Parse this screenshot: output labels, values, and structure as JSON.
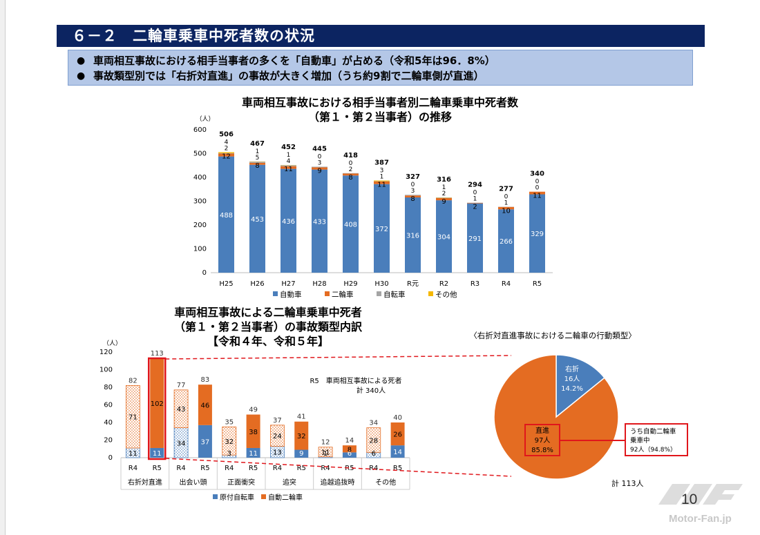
{
  "page": {
    "title": "６－２　二輪車乗車中死者数の状況",
    "bullets": [
      "事故類型別では「右折対直進」の事故が大きく増加（うち約9割で二輪車側が直進）"
    ],
    "bullet_mark": "●",
    "bullet_first": "車両相互事故における相手当事者の多くを「自動車」が占める（令和5年は96．8%）",
    "page_number": "10",
    "logo_text": "Motor-Fan.jp"
  },
  "colors": {
    "auto": "#4a7ebb",
    "moto": "#e46c22",
    "bike": "#a5a5a5",
    "other": "#f5b800",
    "title_bg": "#0c2461",
    "summary_bg": "#b4c7e7",
    "highlight": "#e0161b"
  },
  "chart_data": [
    {
      "type": "bar",
      "stacked": true,
      "title_line1": "車両相互事故における相手当事者別二輪車乗車中死者数",
      "title_line2": "（第１・第２当事者）の推移",
      "unit": "（人）",
      "ylim": [
        0,
        600
      ],
      "yticks": [
        0,
        100,
        200,
        300,
        400,
        500,
        600
      ],
      "categories": [
        "H25",
        "H26",
        "H27",
        "H28",
        "H29",
        "H30",
        "R元",
        "R2",
        "R3",
        "R4",
        "R5"
      ],
      "totals": [
        506,
        467,
        452,
        445,
        418,
        387,
        327,
        316,
        294,
        277,
        340
      ],
      "series": [
        {
          "name": "自動車",
          "values": [
            488,
            453,
            436,
            433,
            408,
            372,
            316,
            304,
            291,
            266,
            329
          ]
        },
        {
          "name": "二輪車",
          "values": [
            12,
            8,
            11,
            9,
            8,
            11,
            8,
            9,
            2,
            10,
            11
          ]
        },
        {
          "name": "自転車",
          "values": [
            2,
            5,
            4,
            3,
            2,
            1,
            3,
            2,
            1,
            1,
            0
          ]
        },
        {
          "name": "その他",
          "values": [
            4,
            1,
            1,
            0,
            0,
            3,
            0,
            1,
            0,
            0,
            0
          ]
        }
      ]
    },
    {
      "type": "bar",
      "stacked": true,
      "title_line1": "車両相互事故による二輪車乗車中死者",
      "title_line2": "（第１・第２当事者）の事故類型内訳",
      "title_line3": "【令和４年、令和５年】",
      "unit": "（人）",
      "ylim": [
        0,
        120
      ],
      "yticks": [
        0,
        20,
        40,
        60,
        80,
        100,
        120
      ],
      "annotation_line1": "R5　車両相互事故による死者",
      "annotation_line2": "計 340人",
      "groups": [
        "右折対直進",
        "出会い頭",
        "正面衝突",
        "追突",
        "追越追抜時",
        "その他"
      ],
      "categories": [
        "R4",
        "R5",
        "R4",
        "R5",
        "R4",
        "R5",
        "R4",
        "R5",
        "R4",
        "R5",
        "R4",
        "R5"
      ],
      "totals": [
        82,
        113,
        77,
        83,
        35,
        49,
        37,
        41,
        12,
        14,
        34,
        40
      ],
      "series": [
        {
          "name": "原付自転車",
          "values": [
            11,
            11,
            34,
            37,
            3,
            11,
            13,
            9,
            1,
            6,
            6,
            14
          ]
        },
        {
          "name": "自動二輪車",
          "values": [
            71,
            102,
            43,
            46,
            32,
            38,
            24,
            32,
            11,
            8,
            28,
            26
          ]
        }
      ]
    },
    {
      "type": "pie",
      "title": "〈右折対直進事故における二輪車の行動類型〉",
      "total_label": "計 113人",
      "slices": [
        {
          "label": "右折",
          "count_label": "16人",
          "pct_label": "14.2%",
          "value": 16
        },
        {
          "label": "直進",
          "count_label": "97人",
          "pct_label": "85.8%",
          "value": 97
        }
      ],
      "callout_line1": "うち自動二輪車",
      "callout_line2": "乗車中",
      "callout_line3": "92人（94.8%）"
    }
  ]
}
